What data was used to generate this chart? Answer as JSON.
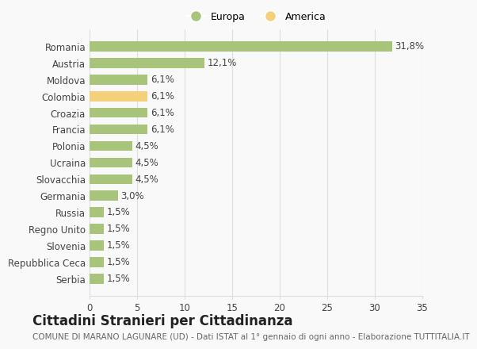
{
  "categories": [
    "Romania",
    "Austria",
    "Moldova",
    "Colombia",
    "Croazia",
    "Francia",
    "Polonia",
    "Ucraina",
    "Slovacchia",
    "Germania",
    "Russia",
    "Regno Unito",
    "Slovenia",
    "Repubblica Ceca",
    "Serbia"
  ],
  "values": [
    31.8,
    12.1,
    6.1,
    6.1,
    6.1,
    6.1,
    4.5,
    4.5,
    4.5,
    3.0,
    1.5,
    1.5,
    1.5,
    1.5,
    1.5
  ],
  "labels": [
    "31,8%",
    "12,1%",
    "6,1%",
    "6,1%",
    "6,1%",
    "6,1%",
    "4,5%",
    "4,5%",
    "4,5%",
    "3,0%",
    "1,5%",
    "1,5%",
    "1,5%",
    "1,5%",
    "1,5%"
  ],
  "colors": [
    "#a8c47a",
    "#a8c47a",
    "#a8c47a",
    "#f5d07a",
    "#a8c47a",
    "#a8c47a",
    "#a8c47a",
    "#a8c47a",
    "#a8c47a",
    "#a8c47a",
    "#a8c47a",
    "#a8c47a",
    "#a8c47a",
    "#a8c47a",
    "#a8c47a"
  ],
  "legend_europa_color": "#a8c47a",
  "legend_america_color": "#f5d07a",
  "legend_europa_label": "Europa",
  "legend_america_label": "America",
  "xlim": [
    0,
    35
  ],
  "xticks": [
    0,
    5,
    10,
    15,
    20,
    25,
    30,
    35
  ],
  "title": "Cittadini Stranieri per Cittadinanza",
  "subtitle": "COMUNE DI MARANO LAGUNARE (UD) - Dati ISTAT al 1° gennaio di ogni anno - Elaborazione TUTTITALIA.IT",
  "bg_color": "#f9f9f9",
  "grid_color": "#dddddd",
  "bar_height": 0.6,
  "label_fontsize": 8.5,
  "tick_fontsize": 8.5,
  "title_fontsize": 12,
  "subtitle_fontsize": 7.5
}
